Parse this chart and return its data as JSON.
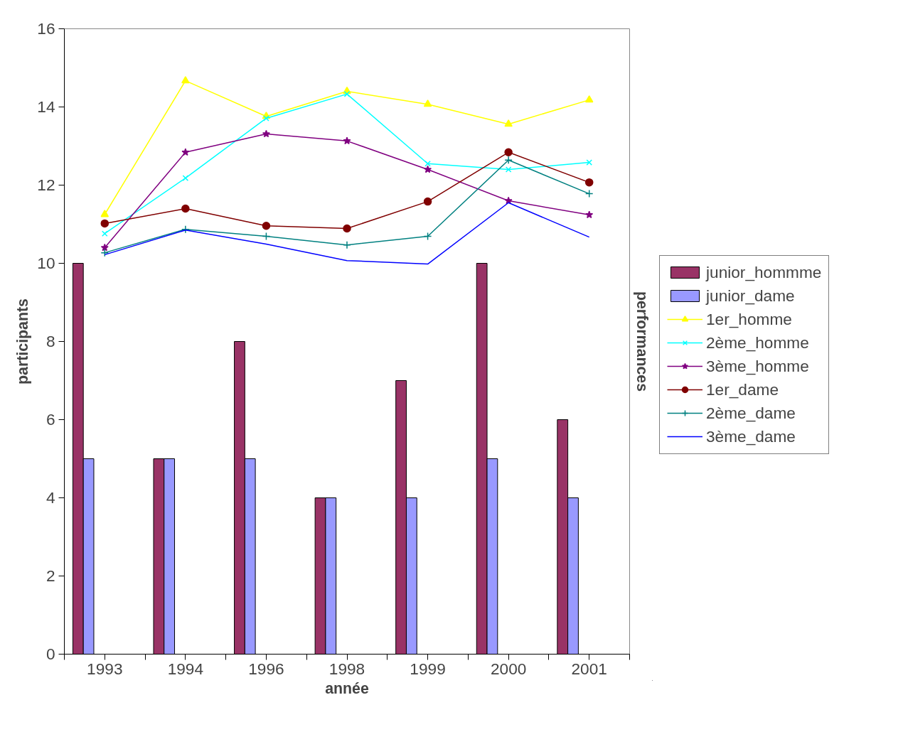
{
  "chart_data": {
    "type": "bar",
    "xlabel": "année",
    "ylabel": "participants",
    "y2label": "performances",
    "categories": [
      "1993",
      "1994",
      "1996",
      "1998",
      "1999",
      "2000",
      "2001"
    ],
    "ylim": [
      0,
      16
    ],
    "yticks": [
      0,
      2,
      4,
      6,
      8,
      10,
      12,
      14,
      16
    ],
    "grid": false,
    "legend": "right",
    "series": [
      {
        "name": "junior_hommme",
        "color": "#993366",
        "values": [
          10,
          5,
          8,
          4,
          7,
          10,
          6
        ]
      },
      {
        "name": "junior_dame",
        "color": "#9999ff",
        "values": [
          5,
          5,
          5,
          4,
          4,
          5,
          4
        ]
      },
      {
        "name": "1er_homme",
        "type": "line",
        "marker": "triangle",
        "color": "#ffff00",
        "values": [
          11.25,
          14.67,
          13.76,
          14.4,
          14.07,
          13.56,
          14.18
        ]
      },
      {
        "name": "2ème_homme",
        "type": "line",
        "marker": "x",
        "color": "#00ffff",
        "values": [
          10.76,
          12.18,
          13.71,
          14.33,
          12.55,
          12.4,
          12.58
        ]
      },
      {
        "name": "3ème_homme",
        "type": "line",
        "marker": "star",
        "color": "#800080",
        "values": [
          10.4,
          12.84,
          13.31,
          13.13,
          12.4,
          11.6,
          11.24
        ]
      },
      {
        "name": "1er_dame",
        "type": "line",
        "marker": "circle",
        "color": "#800000",
        "values": [
          11.02,
          11.4,
          10.96,
          10.89,
          11.58,
          12.84,
          12.07
        ]
      },
      {
        "name": "2ème_dame",
        "type": "line",
        "marker": "cross",
        "color": "#008080",
        "values": [
          10.27,
          10.87,
          10.69,
          10.47,
          10.69,
          12.64,
          11.78
        ]
      },
      {
        "name": "3ème_dame",
        "type": "line",
        "marker": "none",
        "color": "#0000ff",
        "values": [
          10.22,
          10.85,
          10.49,
          10.07,
          9.98,
          11.55,
          10.67
        ]
      }
    ]
  }
}
